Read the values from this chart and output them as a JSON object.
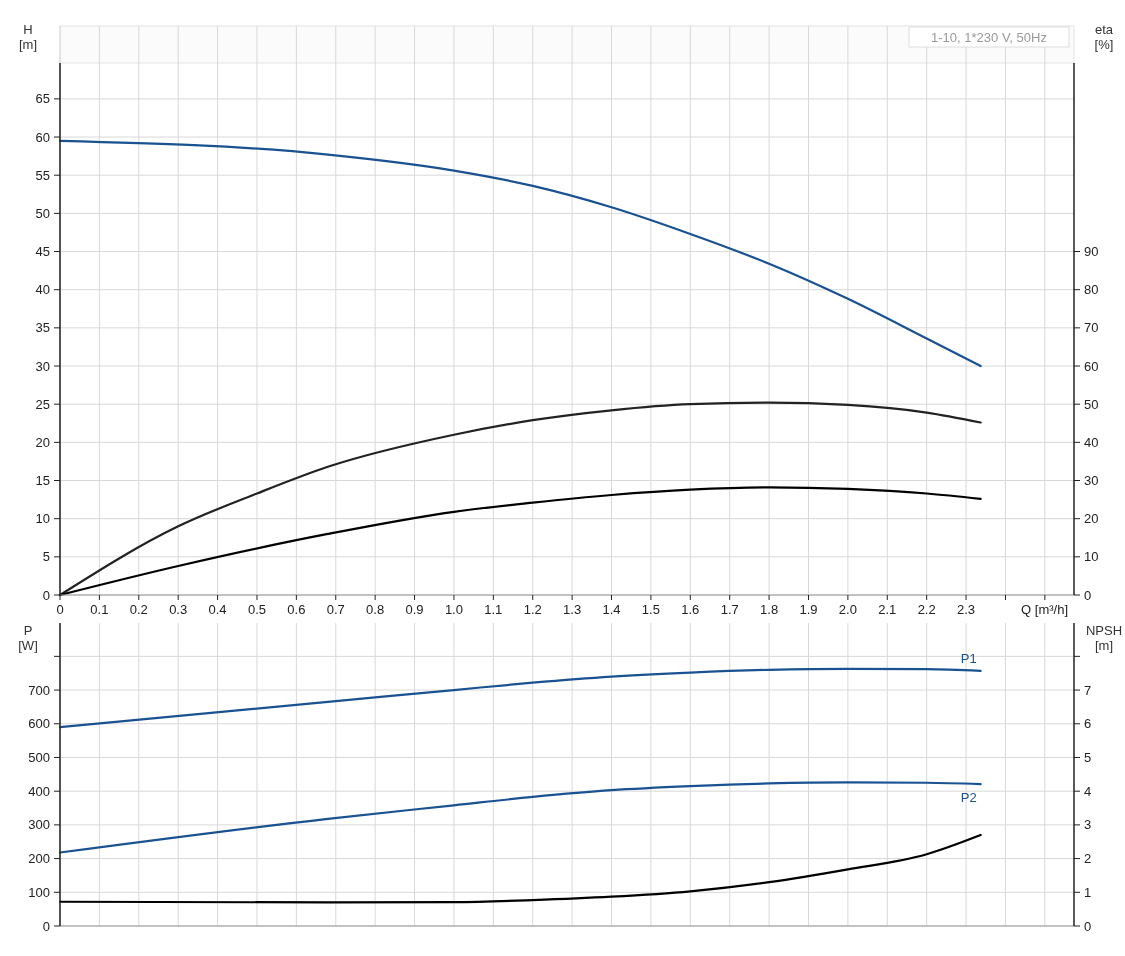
{
  "chart_data": [
    {
      "type": "line",
      "annotations": [
        "1-10, 1*230 V, 50Hz"
      ],
      "xlabel": "Q [m³/h]",
      "ylabel": "H\n[m]",
      "y2label": "eta\n[%]",
      "grid": true,
      "marker": "none",
      "line_style": "solid",
      "xlim": [
        0,
        2.574
      ],
      "xticks": [
        0,
        0.1,
        0.2,
        0.3,
        0.4,
        0.5,
        0.6,
        0.7,
        0.8,
        0.9,
        {
          "value": 1,
          "label": "1.0"
        },
        1.1,
        1.2,
        1.3,
        1.4,
        1.5,
        1.6,
        1.7,
        1.8,
        1.9,
        {
          "value": 2,
          "label": "2.0"
        },
        2.1,
        2.2,
        2.3,
        {
          "value": 2.4,
          "label": null
        },
        {
          "value": 2.5,
          "label": null
        }
      ],
      "ylim": [
        0,
        69.7
      ],
      "yticks": [
        0,
        5,
        10,
        15,
        20,
        25,
        30,
        35,
        40,
        45,
        50,
        55,
        60,
        65
      ],
      "y2lim": [
        0,
        139.4
      ],
      "y2ticks": [
        0,
        10,
        20,
        30,
        40,
        50,
        60,
        70,
        80,
        90
      ],
      "series": [
        {
          "color": "#1a5191",
          "x": [
            0,
            0.68,
            1.0,
            1.2,
            1.4,
            1.6,
            1.8,
            2.0,
            2.2,
            2.337
          ],
          "values": [
            59.5,
            57.7,
            55.6,
            53.6,
            50.8,
            47.3,
            43.4,
            38.8,
            33.6,
            30.0
          ]
        },
        {
          "color": "#222222",
          "axis": "y2",
          "x": [
            0,
            0.3,
            0.5,
            0.68,
            1.0,
            1.2,
            1.4,
            1.6,
            1.8,
            2.0,
            2.2,
            2.337
          ],
          "values": [
            0,
            18,
            26.6,
            33.6,
            42,
            45.8,
            48.4,
            50,
            50.4,
            49.8,
            47.8,
            45.2
          ]
        },
        {
          "color": "#000000",
          "axis": "y2",
          "x": [
            0,
            0.3,
            0.68,
            1.0,
            1.2,
            1.4,
            1.6,
            1.8,
            2.0,
            2.2,
            2.337
          ],
          "values": [
            0,
            7.6,
            16,
            21.8,
            24.2,
            26.2,
            27.6,
            28.2,
            27.8,
            26.6,
            25.2
          ]
        }
      ]
    },
    {
      "type": "line",
      "ylabel": "P\n[W]",
      "y2label": "NPSH\n[m]",
      "grid": true,
      "marker": "none",
      "line_style": "solid",
      "tick_labels": "y",
      "xlim": [
        0,
        2.574
      ],
      "xticks": [
        0,
        0.1,
        0.2,
        0.3,
        0.4,
        0.5,
        0.6,
        0.7,
        0.8,
        0.9,
        1.0,
        1.1,
        1.2,
        1.3,
        1.4,
        1.5,
        1.6,
        1.7,
        1.8,
        1.9,
        2.0,
        2.1,
        2.2,
        2.3,
        2.4,
        2.5
      ],
      "ylim": [
        0,
        899
      ],
      "yticks": [
        0,
        100,
        200,
        300,
        400,
        500,
        600,
        700,
        {
          "value": 800,
          "label": null
        }
      ],
      "y2lim": [
        0,
        8.99
      ],
      "y2ticks": [
        0,
        1,
        2,
        3,
        4,
        5,
        6,
        7,
        {
          "value": 8,
          "label": null
        }
      ],
      "series": [
        {
          "name": "P1",
          "color": "#1a5191",
          "x": [
            0,
            0.68,
            1.0,
            1.2,
            1.4,
            1.6,
            1.8,
            2.0,
            2.2,
            2.337
          ],
          "values": [
            590,
            665,
            700,
            722,
            740,
            752,
            760,
            763,
            762,
            757
          ]
        },
        {
          "name": "P2",
          "color": "#1a5191",
          "x": [
            0,
            0.68,
            1.0,
            1.2,
            1.4,
            1.6,
            1.8,
            2.0,
            2.2,
            2.337
          ],
          "values": [
            218,
            318,
            358,
            383,
            403,
            415,
            423,
            426,
            425,
            421
          ]
        },
        {
          "color": "#000000",
          "axis": "y2",
          "x": [
            0,
            0.68,
            1.0,
            1.2,
            1.4,
            1.6,
            1.8,
            2.0,
            2.2,
            2.337
          ],
          "values": [
            0.72,
            0.7,
            0.71,
            0.77,
            0.87,
            1.03,
            1.3,
            1.68,
            2.13,
            2.7
          ]
        }
      ]
    }
  ]
}
